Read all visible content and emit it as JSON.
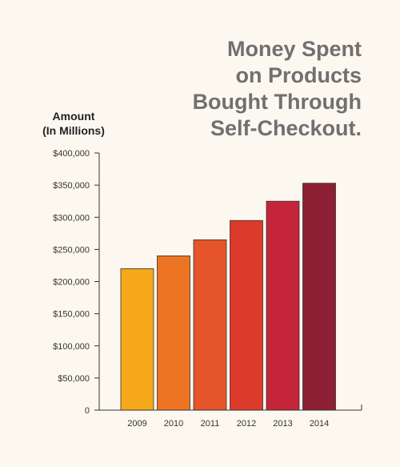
{
  "chart_data": {
    "type": "bar",
    "title": [
      "Money Spent",
      "on Products",
      "Bought Through",
      "Self-Checkout."
    ],
    "ylabel": [
      "Amount",
      "(In Millions)"
    ],
    "xlabel": "",
    "categories": [
      "2009",
      "2010",
      "2011",
      "2012",
      "2013",
      "2014"
    ],
    "values": [
      220000,
      240000,
      265000,
      295000,
      325000,
      353000
    ],
    "ylim": [
      0,
      400000
    ],
    "yticks": [
      0,
      50000,
      100000,
      150000,
      200000,
      250000,
      300000,
      350000,
      400000
    ],
    "ytick_labels": [
      "0",
      "$50,000",
      "$100,000",
      "$150,000",
      "$200,000",
      "$250,000",
      "$300,000",
      "$350,000",
      "$400,000"
    ],
    "grid": false,
    "bar_colors": [
      "#f5a81a",
      "#ec7422",
      "#e5542a",
      "#dd3a2b",
      "#c5253a",
      "#8c1f33"
    ],
    "bar_outline": "#333333"
  }
}
